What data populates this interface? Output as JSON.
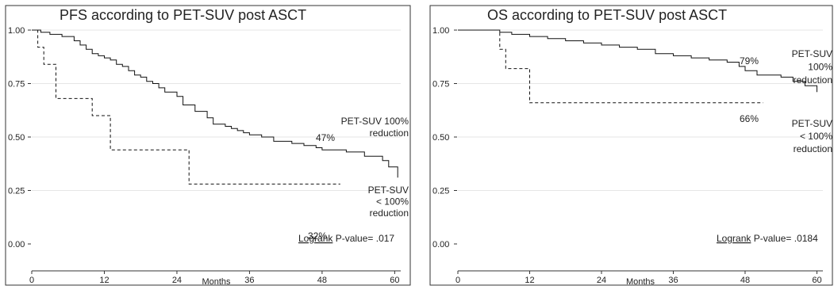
{
  "chart_data": [
    {
      "type": "line",
      "title": "PFS according to PET-SUV post ASCT",
      "xlabel": "Months",
      "ylabel": "",
      "xlim": [
        0,
        61
      ],
      "ylim": [
        0,
        1
      ],
      "x_ticks": [
        "0",
        "12",
        "24",
        "36",
        "48",
        "60"
      ],
      "y_ticks": [
        "0.00",
        "0.25",
        "0.50",
        "0.75",
        "1.00"
      ],
      "grid": true,
      "series": [
        {
          "name": "PET-SUV 100% reduction",
          "style": "solid",
          "x": [
            0,
            1.5,
            3,
            5,
            7,
            8,
            9,
            10,
            11,
            12,
            13,
            14,
            15,
            16,
            17,
            18,
            19,
            20,
            21,
            22,
            24,
            25,
            27,
            29,
            30,
            32,
            33,
            34,
            35,
            36,
            38,
            40,
            43,
            45,
            47,
            48,
            52,
            55,
            58,
            59,
            60.5
          ],
          "y": [
            1.0,
            0.99,
            0.98,
            0.97,
            0.95,
            0.93,
            0.91,
            0.89,
            0.88,
            0.87,
            0.86,
            0.84,
            0.83,
            0.81,
            0.79,
            0.78,
            0.76,
            0.75,
            0.73,
            0.71,
            0.69,
            0.65,
            0.62,
            0.59,
            0.56,
            0.55,
            0.54,
            0.53,
            0.52,
            0.51,
            0.5,
            0.48,
            0.47,
            0.46,
            0.45,
            0.44,
            0.43,
            0.41,
            0.39,
            0.36,
            0.31
          ]
        },
        {
          "name": "PET-SUV < 100% reduction",
          "style": "dashed",
          "x": [
            0,
            1,
            2,
            4,
            10,
            13,
            26,
            51
          ],
          "y": [
            1.0,
            0.92,
            0.84,
            0.68,
            0.6,
            0.44,
            0.28,
            0.28
          ]
        }
      ],
      "annotations": {
        "solid_pct": "47%",
        "solid_label": [
          "PET-SUV 100%",
          "reduction"
        ],
        "dashed_pct": "32%",
        "dashed_label": [
          "PET-SUV",
          "< 100%",
          "reduction"
        ],
        "pvalue_label": "Logrank",
        "pvalue_text": " P-value= .017"
      }
    },
    {
      "type": "line",
      "title": "OS according to PET-SUV post ASCT",
      "xlabel": "Months",
      "ylabel": "",
      "xlim": [
        0,
        61
      ],
      "ylim": [
        0,
        1
      ],
      "x_ticks": [
        "0",
        "12",
        "24",
        "36",
        "48",
        "60"
      ],
      "y_ticks": [
        "0.00",
        "0.25",
        "0.50",
        "0.75",
        "1.00"
      ],
      "grid": true,
      "series": [
        {
          "name": "PET-SUV 100% reduction",
          "style": "solid",
          "x": [
            0,
            7,
            9,
            12,
            15,
            18,
            21,
            24,
            27,
            30,
            33,
            36,
            39,
            42,
            45,
            47,
            48,
            50,
            54,
            56,
            58,
            60
          ],
          "y": [
            1.0,
            0.99,
            0.98,
            0.97,
            0.96,
            0.95,
            0.94,
            0.93,
            0.92,
            0.91,
            0.89,
            0.88,
            0.87,
            0.86,
            0.85,
            0.83,
            0.81,
            0.79,
            0.78,
            0.76,
            0.74,
            0.71
          ]
        },
        {
          "name": "PET-SUV < 100% reduction",
          "style": "dashed",
          "x": [
            0,
            7,
            8,
            12,
            51
          ],
          "y": [
            1.0,
            0.91,
            0.82,
            0.66,
            0.66
          ]
        }
      ],
      "annotations": {
        "solid_pct": "79%",
        "solid_label": [
          "PET-SUV",
          "100%",
          "reduction"
        ],
        "dashed_pct": "66%",
        "dashed_label": [
          "PET-SUV",
          "< 100%",
          "reduction"
        ],
        "pvalue_label": "Logrank",
        "pvalue_text": " P-value= .0184"
      }
    }
  ]
}
